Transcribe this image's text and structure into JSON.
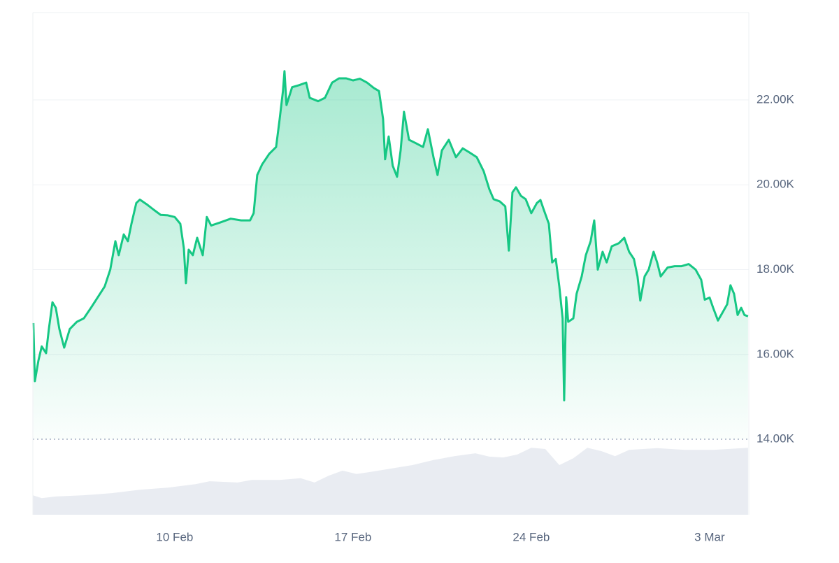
{
  "chart_data": {
    "type": "line",
    "xlim": [
      4.43,
      32.54
    ],
    "xticks": [
      {
        "value": 10,
        "label": "10 Feb"
      },
      {
        "value": 17,
        "label": "17 Feb"
      },
      {
        "value": 24,
        "label": "24 Feb"
      },
      {
        "value": 31,
        "label": "3 Mar"
      }
    ],
    "ylim": [
      12220,
      24060
    ],
    "yticks": [
      {
        "value": 14000,
        "label": "14.00K"
      },
      {
        "value": 16000,
        "label": "16.00K"
      },
      {
        "value": 18000,
        "label": "18.00K"
      },
      {
        "value": 20000,
        "label": "20.00K"
      },
      {
        "value": 22000,
        "label": "22.00K"
      }
    ],
    "grid": true,
    "series": [
      {
        "color": "#e9ecf2",
        "style": "area",
        "x": [
          4.43,
          4.78,
          5.33,
          6.43,
          7.53,
          8.63,
          9.73,
          10.82,
          11.37,
          12.47,
          13.02,
          14.12,
          14.94,
          15.49,
          16.04,
          16.59,
          17.14,
          17.69,
          18.51,
          19.33,
          20.16,
          20.98,
          21.8,
          22.35,
          22.9,
          23.45,
          24.0,
          24.55,
          25.1,
          25.65,
          26.2,
          26.75,
          27.29,
          27.84,
          28.94,
          30.04,
          31.14,
          32.51
        ],
        "values": [
          12680,
          12610,
          12650,
          12680,
          12730,
          12810,
          12860,
          12940,
          13010,
          12980,
          13040,
          13040,
          13080,
          12980,
          13140,
          13260,
          13180,
          13230,
          13310,
          13390,
          13510,
          13600,
          13670,
          13590,
          13570,
          13640,
          13800,
          13770,
          13390,
          13550,
          13800,
          13720,
          13600,
          13750,
          13790,
          13750,
          13750,
          13800
        ]
      },
      {
        "color": "#16c784",
        "style": "line",
        "x": [
          4.45,
          4.51,
          4.65,
          4.78,
          4.95,
          5.06,
          5.2,
          5.33,
          5.47,
          5.66,
          5.88,
          6.16,
          6.43,
          6.71,
          6.98,
          7.25,
          7.47,
          7.67,
          7.8,
          8.0,
          8.16,
          8.3,
          8.49,
          8.63,
          8.9,
          9.18,
          9.45,
          9.73,
          10.0,
          10.22,
          10.36,
          10.44,
          10.55,
          10.71,
          10.88,
          11.1,
          11.26,
          11.43,
          11.78,
          12.2,
          12.61,
          12.96,
          13.1,
          13.24,
          13.43,
          13.71,
          13.98,
          14.12,
          14.25,
          14.31,
          14.39,
          14.61,
          14.89,
          15.16,
          15.3,
          15.63,
          15.9,
          16.18,
          16.45,
          16.73,
          17.0,
          17.27,
          17.55,
          17.82,
          18.02,
          18.18,
          18.26,
          18.4,
          18.56,
          18.73,
          18.87,
          19.0,
          19.2,
          19.47,
          19.75,
          19.94,
          20.16,
          20.32,
          20.49,
          20.76,
          21.04,
          21.31,
          21.58,
          21.86,
          22.13,
          22.35,
          22.52,
          22.76,
          22.98,
          23.12,
          23.26,
          23.4,
          23.59,
          23.78,
          24.0,
          24.22,
          24.36,
          24.49,
          24.69,
          24.82,
          24.96,
          25.1,
          25.23,
          25.29,
          25.37,
          25.45,
          25.65,
          25.78,
          25.98,
          26.14,
          26.33,
          26.47,
          26.61,
          26.8,
          26.96,
          27.16,
          27.43,
          27.65,
          27.84,
          28.03,
          28.17,
          28.28,
          28.45,
          28.61,
          28.8,
          28.94,
          29.08,
          29.35,
          29.63,
          29.9,
          30.18,
          30.45,
          30.67,
          30.81,
          31.0,
          31.14,
          31.33,
          31.49,
          31.69,
          31.82,
          31.96,
          32.1,
          32.24,
          32.37,
          32.51
        ],
        "values": [
          16740,
          15370,
          15860,
          16190,
          16030,
          16600,
          17230,
          17100,
          16600,
          16160,
          16600,
          16770,
          16850,
          17100,
          17350,
          17600,
          18000,
          18670,
          18340,
          18830,
          18670,
          19080,
          19570,
          19650,
          19540,
          19410,
          19290,
          19280,
          19240,
          19080,
          18500,
          17680,
          18470,
          18340,
          18750,
          18340,
          19240,
          19040,
          19110,
          19200,
          19160,
          19160,
          19330,
          20230,
          20480,
          20730,
          20890,
          21550,
          22210,
          22680,
          21880,
          22300,
          22350,
          22410,
          22050,
          21970,
          22050,
          22410,
          22510,
          22510,
          22460,
          22500,
          22410,
          22280,
          22210,
          21550,
          20600,
          21140,
          20450,
          20190,
          20810,
          21720,
          21060,
          20980,
          20890,
          21310,
          20650,
          20230,
          20810,
          21060,
          20650,
          20860,
          20760,
          20650,
          20320,
          19900,
          19660,
          19610,
          19490,
          18450,
          19820,
          19940,
          19740,
          19660,
          19330,
          19570,
          19640,
          19410,
          19080,
          18170,
          18250,
          17600,
          16850,
          14920,
          17350,
          16770,
          16850,
          17430,
          17840,
          18340,
          18670,
          19160,
          18000,
          18420,
          18170,
          18550,
          18620,
          18750,
          18420,
          18250,
          17840,
          17270,
          17840,
          18000,
          18420,
          18170,
          17840,
          18050,
          18080,
          18080,
          18130,
          18000,
          17760,
          17290,
          17340,
          17100,
          16800,
          16970,
          17180,
          17630,
          17430,
          16930,
          17100,
          16930,
          16900
        ]
      }
    ]
  }
}
